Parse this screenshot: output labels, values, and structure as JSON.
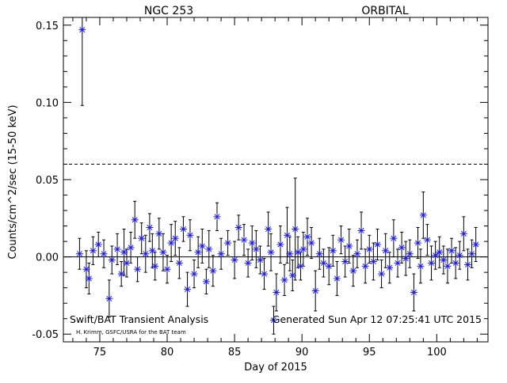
{
  "header": {
    "source_name": "NGC 253",
    "mode": "ORBITAL"
  },
  "footer": {
    "analysis_label": "Swift/BAT Transient Analysis",
    "credit": "H. Krimm, GSFC/USRA for the BAT team",
    "generated": "Generated Sun Apr 12 07:25:41 UTC 2015"
  },
  "colors": {
    "points": "#1a1aff",
    "axes": "#000000",
    "errorbars": "#000000"
  },
  "chart_data": {
    "type": "scatter",
    "title": "",
    "xlabel": "Day of 2015",
    "ylabel": "Counts/cm^2/sec (15-50 keV)",
    "xlim": [
      72.3,
      103.8
    ],
    "ylim": [
      -0.055,
      0.155
    ],
    "xticks": [
      75,
      80,
      85,
      90,
      95,
      100
    ],
    "xtick_labels": [
      "75",
      "80",
      "85",
      "90",
      "95",
      "100"
    ],
    "yticks": [
      -0.05,
      0.0,
      0.05,
      0.1,
      0.15
    ],
    "ytick_labels": [
      "-0.05",
      "0.00",
      "0.05",
      "0.10",
      "0.15"
    ],
    "reference_lines": {
      "solid_y": 0.0,
      "dashed_y": 0.06
    },
    "grid": false,
    "marker": "asterisk",
    "series": [
      {
        "x": [
          73.5,
          73.7,
          74.0,
          74.2,
          74.5,
          74.9,
          75.3,
          75.7,
          75.9,
          76.3,
          76.6,
          76.8,
          77.0,
          77.3,
          77.6,
          77.8,
          78.1,
          78.4,
          78.7,
          78.9,
          79.1,
          79.4,
          79.7,
          80.0,
          80.3,
          80.6,
          80.9,
          81.2,
          81.5,
          81.7,
          82.0,
          82.3,
          82.6,
          82.9,
          83.1,
          83.4,
          83.7,
          84.0,
          84.5,
          85.0,
          85.3,
          85.7,
          86.0,
          86.3,
          86.6,
          86.9,
          87.2,
          87.5,
          87.7,
          87.9,
          88.1,
          88.4,
          88.7,
          88.9,
          89.1,
          89.3,
          89.5,
          89.7,
          89.9,
          90.1,
          90.4,
          90.7,
          91.0,
          91.3,
          91.6,
          92.0,
          92.3,
          92.6,
          92.9,
          93.2,
          93.5,
          93.8,
          94.1,
          94.4,
          94.7,
          95.0,
          95.3,
          95.6,
          95.9,
          96.2,
          96.5,
          96.8,
          97.1,
          97.4,
          97.7,
          98.0,
          98.3,
          98.6,
          98.8,
          99.0,
          99.3,
          99.6,
          99.9,
          100.2,
          100.5,
          100.8,
          101.1,
          101.4,
          101.7,
          102.0,
          102.3,
          102.6,
          102.9
        ],
        "y": [
          0.002,
          0.147,
          -0.008,
          -0.014,
          0.004,
          0.008,
          0.002,
          -0.027,
          -0.002,
          0.005,
          -0.011,
          0.003,
          -0.004,
          0.006,
          0.024,
          -0.008,
          0.012,
          0.002,
          0.019,
          0.004,
          -0.006,
          0.015,
          0.003,
          -0.008,
          0.009,
          0.012,
          -0.004,
          0.018,
          -0.021,
          0.014,
          -0.011,
          0.003,
          0.007,
          -0.016,
          0.005,
          -0.009,
          0.026,
          0.002,
          0.009,
          -0.002,
          0.019,
          0.011,
          -0.004,
          0.009,
          0.005,
          -0.002,
          -0.011,
          0.018,
          0.003,
          -0.041,
          -0.023,
          0.008,
          -0.015,
          0.014,
          0.002,
          -0.012,
          0.018,
          0.003,
          -0.006,
          0.005,
          0.013,
          0.009,
          -0.022,
          0.002,
          -0.004,
          -0.006,
          0.004,
          -0.014,
          0.011,
          -0.003,
          0.007,
          -0.009,
          0.002,
          0.017,
          -0.006,
          0.005,
          -0.003,
          0.008,
          -0.011,
          0.004,
          -0.007,
          0.012,
          -0.004,
          0.006,
          -0.001,
          0.002,
          -0.023,
          0.009,
          -0.006,
          0.027,
          0.011,
          -0.004,
          0.001,
          0.003,
          -0.002,
          -0.006,
          0.004,
          -0.004,
          0.001,
          0.015,
          -0.005,
          0.002,
          0.008
        ],
        "err": [
          0.01,
          0.049,
          0.012,
          0.01,
          0.009,
          0.008,
          0.009,
          0.012,
          0.009,
          0.01,
          0.008,
          0.015,
          0.009,
          0.01,
          0.012,
          0.008,
          0.01,
          0.012,
          0.009,
          0.011,
          0.009,
          0.01,
          0.012,
          0.009,
          0.012,
          0.011,
          0.01,
          0.008,
          0.011,
          0.01,
          0.009,
          0.01,
          0.011,
          0.008,
          0.012,
          0.01,
          0.009,
          0.01,
          0.008,
          0.012,
          0.008,
          0.01,
          0.009,
          0.011,
          0.012,
          0.009,
          0.01,
          0.011,
          0.012,
          0.009,
          0.012,
          0.012,
          0.01,
          0.018,
          0.011,
          0.01,
          0.033,
          0.01,
          0.009,
          0.011,
          0.012,
          0.01,
          0.013,
          0.01,
          0.009,
          0.012,
          0.01,
          0.011,
          0.009,
          0.01,
          0.011,
          0.01,
          0.009,
          0.012,
          0.011,
          0.009,
          0.012,
          0.01,
          0.009,
          0.011,
          0.01,
          0.012,
          0.009,
          0.01,
          0.011,
          0.009,
          0.012,
          0.01,
          0.011,
          0.015,
          0.01,
          0.011,
          0.009,
          0.01,
          0.009,
          0.011,
          0.008,
          0.01,
          0.009,
          0.011,
          0.01,
          0.009,
          0.011
        ]
      }
    ]
  }
}
